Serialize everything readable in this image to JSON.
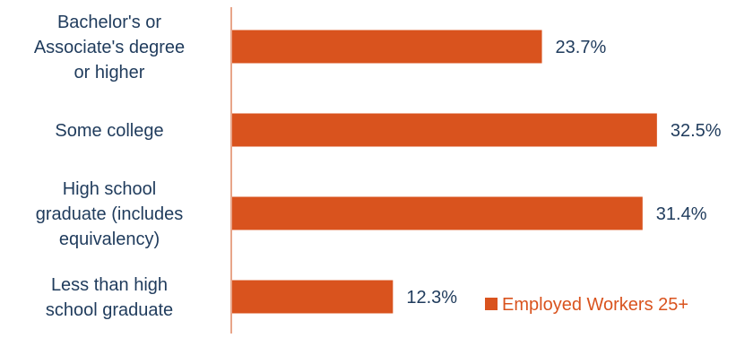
{
  "chart_data": {
    "type": "bar",
    "orientation": "horizontal",
    "categories": [
      [
        "Bachelor's or",
        "Associate's degree",
        "or higher"
      ],
      [
        "Some college"
      ],
      [
        "High school",
        "graduate (includes",
        "equivalency)"
      ],
      [
        "Less than high",
        "school graduate"
      ]
    ],
    "series": [
      {
        "name": "Employed Workers 25+",
        "values": [
          23.7,
          32.5,
          31.4,
          12.3
        ],
        "labels": [
          "23.7%",
          "32.5%",
          "31.4%",
          "12.3%"
        ],
        "color": "#D9531E"
      }
    ],
    "xlim": [
      0,
      35
    ],
    "grid": false,
    "legend": "bottom-right",
    "colors": {
      "bar": "#D9531E",
      "label_text": "#1F3B5C",
      "axis_line": "#E8A58A",
      "legend_text": "#D9531E"
    }
  }
}
